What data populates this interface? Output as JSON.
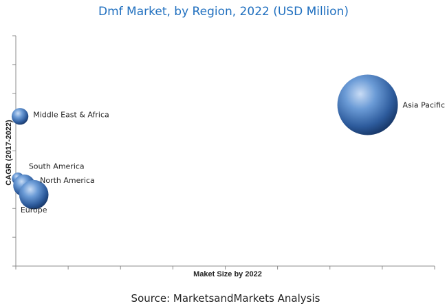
{
  "chart_data": {
    "type": "scatter",
    "title": "Dmf Market, by Region, 2022 (USD Million)",
    "xlabel": "Maket Size by 2022",
    "ylabel": "CAGR (2017-2022)",
    "grid": false,
    "legend": "none",
    "points": [
      {
        "name": "Asia Pacific",
        "x": 0.84,
        "y": 0.7,
        "size": 1.0
      },
      {
        "name": "Middle East & Africa",
        "x": 0.01,
        "y": 0.65,
        "size": 0.05
      },
      {
        "name": "South America",
        "x": 0.005,
        "y": 0.38,
        "size": 0.02
      },
      {
        "name": "North America",
        "x": 0.02,
        "y": 0.35,
        "size": 0.1
      },
      {
        "name": "Europe",
        "x": 0.043,
        "y": 0.31,
        "size": 0.2
      }
    ],
    "xlim": [
      0,
      1
    ],
    "ylim": [
      0,
      1
    ],
    "xticks": 9,
    "yticks": 9
  },
  "source": "Source: MarketsandMarkets Analysis",
  "colors": {
    "title": "#1f6fbf",
    "bubble_light": "#a9c8ee",
    "bubble_mid": "#4a7fc4",
    "bubble_dark": "#1b3d74",
    "axis": "#8c8c8c"
  }
}
